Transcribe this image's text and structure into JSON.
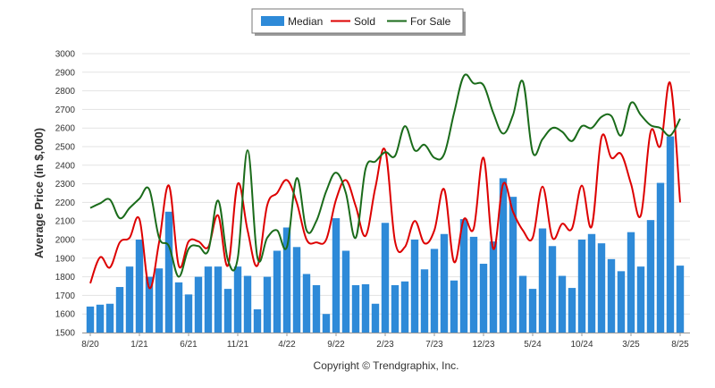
{
  "chart_data": {
    "type": "bar",
    "ylabel": "Average Price (in $,000)",
    "ylim": [
      1500,
      3000
    ],
    "yticks": [
      1500,
      1600,
      1700,
      1800,
      1900,
      2000,
      2100,
      2200,
      2300,
      2400,
      2500,
      2600,
      2700,
      2800,
      2900,
      3000
    ],
    "x_tick_labels": [
      "8/20",
      "1/21",
      "6/21",
      "11/21",
      "4/22",
      "9/22",
      "2/23",
      "7/23",
      "12/23",
      "5/24",
      "10/24",
      "3/25",
      "8/25"
    ],
    "x_tick_every": 5,
    "grid": true,
    "legend_position": "top-center",
    "colors": {
      "Median": "#2e8ad8",
      "Sold": "#dd0000",
      "For Sale": "#1a6b1a"
    },
    "series": [
      {
        "name": "Median",
        "type": "bar",
        "values": [
          1640,
          1650,
          1655,
          1745,
          1855,
          2000,
          1800,
          1845,
          2150,
          1770,
          1705,
          1800,
          1855,
          1855,
          1735,
          1855,
          1805,
          1625,
          1800,
          1940,
          2065,
          1960,
          1815,
          1755,
          1600,
          2115,
          1940,
          1755,
          1760,
          1655,
          2090,
          1755,
          1775,
          2000,
          1840,
          1950,
          2030,
          1780,
          2110,
          2015,
          1870,
          1990,
          2330,
          2230,
          1805,
          1735,
          2060,
          1965,
          1805,
          1740,
          2000,
          2030,
          1980,
          1895,
          1830,
          2040,
          1855,
          2105,
          2305,
          2555,
          1860
        ]
      },
      {
        "name": "Sold",
        "type": "line",
        "values": [
          1765,
          1905,
          1850,
          1985,
          2010,
          2110,
          1740,
          1985,
          2290,
          1860,
          1990,
          1990,
          1960,
          2130,
          1860,
          2300,
          2050,
          1860,
          2185,
          2250,
          2320,
          2200,
          2000,
          1985,
          2000,
          2215,
          2320,
          2180,
          2020,
          2280,
          2480,
          1990,
          1960,
          2100,
          1980,
          2050,
          2270,
          1880,
          2110,
          2060,
          2440,
          1950,
          2300,
          2150,
          2050,
          2010,
          2285,
          2010,
          2085,
          2060,
          2290,
          2070,
          2550,
          2440,
          2460,
          2300,
          2130,
          2580,
          2505,
          2840,
          2200
        ]
      },
      {
        "name": "For Sale",
        "type": "line",
        "values": [
          2170,
          2195,
          2215,
          2115,
          2170,
          2220,
          2270,
          2010,
          1965,
          1800,
          1950,
          1965,
          1940,
          2210,
          1890,
          1900,
          2480,
          1905,
          2010,
          2050,
          1960,
          2330,
          2050,
          2100,
          2260,
          2360,
          2250,
          2010,
          2380,
          2420,
          2470,
          2450,
          2610,
          2480,
          2510,
          2440,
          2460,
          2680,
          2880,
          2840,
          2830,
          2680,
          2570,
          2670,
          2850,
          2470,
          2540,
          2600,
          2580,
          2530,
          2610,
          2600,
          2660,
          2665,
          2560,
          2735,
          2670,
          2615,
          2600,
          2560,
          2650
        ]
      }
    ]
  },
  "legend": {
    "items": [
      {
        "label": "Median",
        "color": "#2e8ad8",
        "kind": "bar"
      },
      {
        "label": "Sold",
        "color": "#dd0000",
        "kind": "line"
      },
      {
        "label": "For Sale",
        "color": "#1a6b1a",
        "kind": "line"
      }
    ]
  },
  "footer": {
    "copyright": "Copyright © Trendgraphix, Inc."
  }
}
